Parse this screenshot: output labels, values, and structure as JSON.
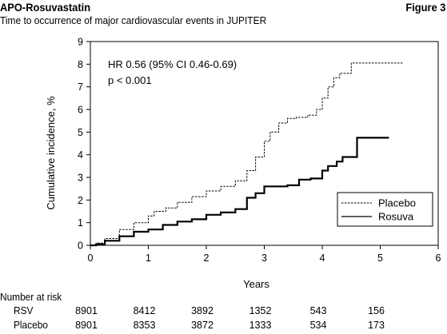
{
  "header": {
    "title": "APO-Rosuvastatin",
    "figure_label": "Figure 3",
    "subtitle": "Time to occurrence of major cardiovascular events in JUPITER"
  },
  "chart_data": {
    "type": "line",
    "xlabel": "Years",
    "ylabel": "Cumulative incidence, %",
    "xlim": [
      0,
      6
    ],
    "ylim": [
      0,
      9
    ],
    "xticks": [
      0,
      1,
      2,
      3,
      4,
      5,
      6
    ],
    "yticks": [
      0,
      1,
      2,
      3,
      4,
      5,
      6,
      7,
      8,
      9
    ],
    "grid": false,
    "legend_position": "bottom-right",
    "annotations": [
      "HR 0.56 (95% CI 0.46-0.69)",
      "p < 0.001"
    ],
    "series": [
      {
        "name": "Placebo",
        "style": "dashed",
        "color": "#000000",
        "x": [
          0,
          0.1,
          0.25,
          0.5,
          0.75,
          1.0,
          1.1,
          1.3,
          1.5,
          1.75,
          2.0,
          2.25,
          2.5,
          2.7,
          2.85,
          3.0,
          3.1,
          3.25,
          3.4,
          3.55,
          3.75,
          3.9,
          4.0,
          4.1,
          4.2,
          4.3,
          4.4,
          4.5,
          5.4
        ],
        "y": [
          0,
          0.1,
          0.3,
          0.7,
          1.0,
          1.3,
          1.5,
          1.65,
          1.9,
          2.15,
          2.4,
          2.6,
          2.85,
          3.3,
          3.9,
          4.6,
          5.0,
          5.4,
          5.6,
          5.65,
          5.75,
          6.0,
          6.5,
          7.0,
          7.4,
          7.6,
          7.6,
          8.05,
          8.05
        ]
      },
      {
        "name": "Rosuva",
        "style": "solid",
        "color": "#000000",
        "x": [
          0,
          0.1,
          0.25,
          0.5,
          0.75,
          1.0,
          1.25,
          1.5,
          1.75,
          2.0,
          2.25,
          2.5,
          2.7,
          2.85,
          3.0,
          3.4,
          3.6,
          3.8,
          4.0,
          4.1,
          4.25,
          4.35,
          4.6,
          5.15
        ],
        "y": [
          0,
          0.05,
          0.2,
          0.4,
          0.6,
          0.7,
          0.9,
          1.05,
          1.15,
          1.35,
          1.45,
          1.6,
          2.1,
          2.3,
          2.6,
          2.65,
          2.9,
          2.95,
          3.3,
          3.5,
          3.7,
          3.9,
          4.75,
          4.75
        ]
      }
    ]
  },
  "risk_table": {
    "heading": "Number at risk",
    "rows": [
      {
        "label": "RSV",
        "values": [
          "8901",
          "8412",
          "3892",
          "1352",
          "543",
          "156"
        ]
      },
      {
        "label": "Placebo",
        "values": [
          "8901",
          "8353",
          "3872",
          "1333",
          "534",
          "173"
        ]
      }
    ]
  }
}
